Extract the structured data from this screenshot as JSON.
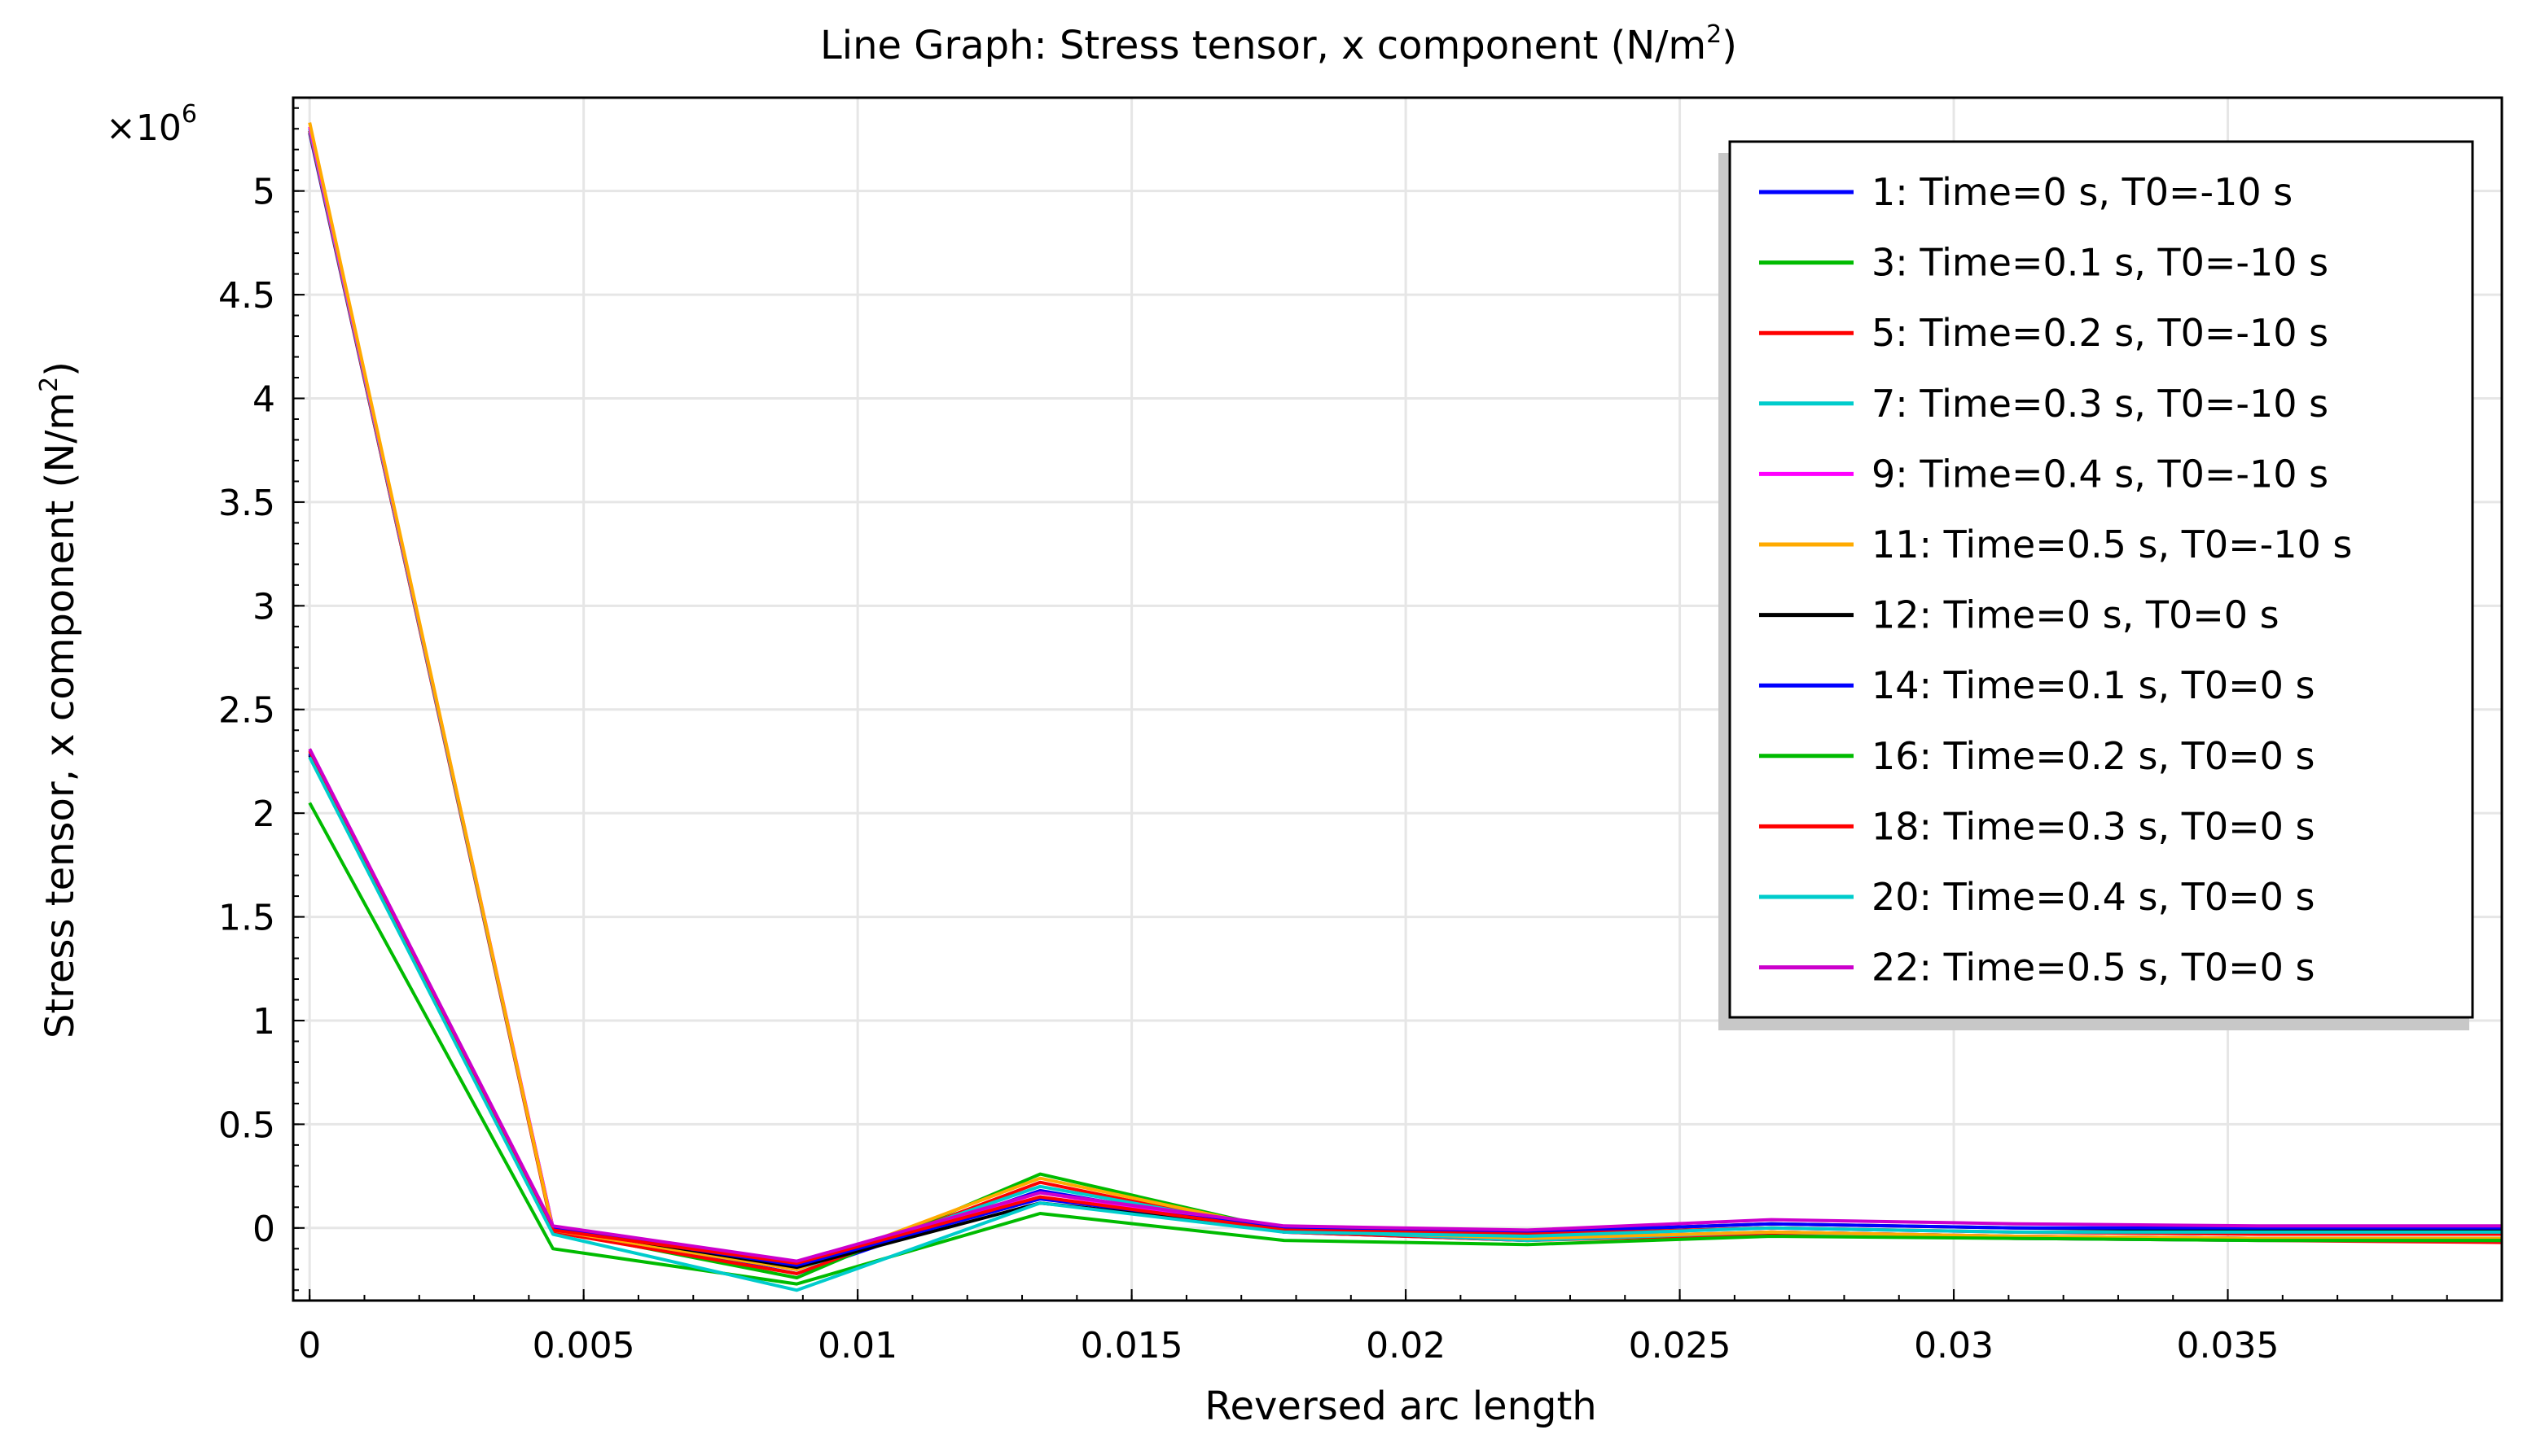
{
  "chart_data": {
    "type": "line",
    "title": "Line Graph: Stress tensor, x component (N/m",
    "title_sup": "2",
    "title_suffix": ")",
    "xlabel": "Reversed arc length",
    "ylabel": "Stress tensor, x component (N/m",
    "ylabel_sup": "2",
    "ylabel_suffix": ")",
    "y_multiplier": "×10",
    "y_multiplier_exp": "6",
    "xlim": [
      -0.0003,
      0.04
    ],
    "ylim": [
      -0.35,
      5.45
    ],
    "xticks": [
      0,
      0.005,
      0.01,
      0.015,
      0.02,
      0.025,
      0.03,
      0.035
    ],
    "xtick_labels": [
      "0",
      "0.005",
      "0.01",
      "0.015",
      "0.02",
      "0.025",
      "0.03",
      "0.035"
    ],
    "yticks": [
      0,
      0.5,
      1,
      1.5,
      2,
      2.5,
      3,
      3.5,
      4,
      4.5,
      5
    ],
    "ytick_labels": [
      "0",
      "0.5",
      "1",
      "1.5",
      "2",
      "2.5",
      "3",
      "3.5",
      "4",
      "4.5",
      "5"
    ],
    "grid": true,
    "legend_position": "top-right",
    "x": [
      0,
      0.00444,
      0.00889,
      0.01333,
      0.01778,
      0.02222,
      0.02667,
      0.03111,
      0.03556,
      0.04
    ],
    "series": [
      {
        "name": "1: Time=0 s, T0=-10 s",
        "color": "#0000ff",
        "values": [
          5.28,
          0.0,
          -0.22,
          0.18,
          -0.02,
          -0.06,
          -0.02,
          -0.04,
          -0.05,
          -0.05
        ]
      },
      {
        "name": "3: Time=0.1 s, T0=-10 s",
        "color": "#00bb00",
        "values": [
          5.29,
          -0.01,
          -0.24,
          0.26,
          -0.01,
          -0.05,
          -0.02,
          -0.04,
          -0.05,
          -0.05
        ]
      },
      {
        "name": "5: Time=0.2 s, T0=-10 s",
        "color": "#ff0000",
        "values": [
          5.29,
          -0.02,
          -0.22,
          0.22,
          -0.02,
          -0.06,
          -0.03,
          -0.05,
          -0.06,
          -0.07
        ]
      },
      {
        "name": "7: Time=0.3 s, T0=-10 s",
        "color": "#00cccc",
        "values": [
          5.3,
          -0.01,
          -0.2,
          0.2,
          -0.01,
          -0.06,
          -0.02,
          -0.05,
          -0.06,
          -0.06
        ]
      },
      {
        "name": "9: Time=0.4 s, T0=-10 s",
        "color": "#ff00ff",
        "values": [
          5.31,
          0.0,
          -0.19,
          0.17,
          -0.01,
          -0.05,
          -0.02,
          -0.04,
          -0.05,
          -0.06
        ]
      },
      {
        "name": "11: Time=0.5 s, T0=-10 s",
        "color": "#ffaa00",
        "values": [
          5.33,
          -0.01,
          -0.2,
          0.24,
          -0.01,
          -0.05,
          -0.02,
          -0.04,
          -0.05,
          -0.05
        ]
      },
      {
        "name": "12: Time=0 s, T0=0 s",
        "color": "#000000",
        "values": [
          2.28,
          0.0,
          -0.19,
          0.12,
          0.0,
          -0.02,
          0.02,
          0.0,
          -0.01,
          -0.01
        ]
      },
      {
        "name": "14: Time=0.1 s, T0=0 s",
        "color": "#0000ff",
        "values": [
          2.29,
          0.0,
          -0.18,
          0.14,
          0.0,
          -0.02,
          0.02,
          0.0,
          0.0,
          0.0
        ]
      },
      {
        "name": "16: Time=0.2 s, T0=0 s",
        "color": "#00bb00",
        "values": [
          2.05,
          -0.1,
          -0.27,
          0.07,
          -0.06,
          -0.08,
          -0.04,
          -0.05,
          -0.06,
          -0.06
        ]
      },
      {
        "name": "18: Time=0.3 s, T0=0 s",
        "color": "#ff0000",
        "values": [
          2.3,
          -0.01,
          -0.17,
          0.15,
          -0.01,
          -0.03,
          0.0,
          -0.02,
          -0.03,
          -0.03
        ]
      },
      {
        "name": "20: Time=0.4 s, T0=0 s",
        "color": "#00cccc",
        "values": [
          2.27,
          -0.03,
          -0.3,
          0.12,
          -0.02,
          -0.04,
          0.0,
          -0.02,
          -0.02,
          -0.02
        ]
      },
      {
        "name": "22: Time=0.5 s, T0=0 s",
        "color": "#cc00cc",
        "values": [
          2.31,
          0.01,
          -0.16,
          0.17,
          0.01,
          -0.01,
          0.04,
          0.02,
          0.01,
          0.01
        ]
      }
    ]
  }
}
